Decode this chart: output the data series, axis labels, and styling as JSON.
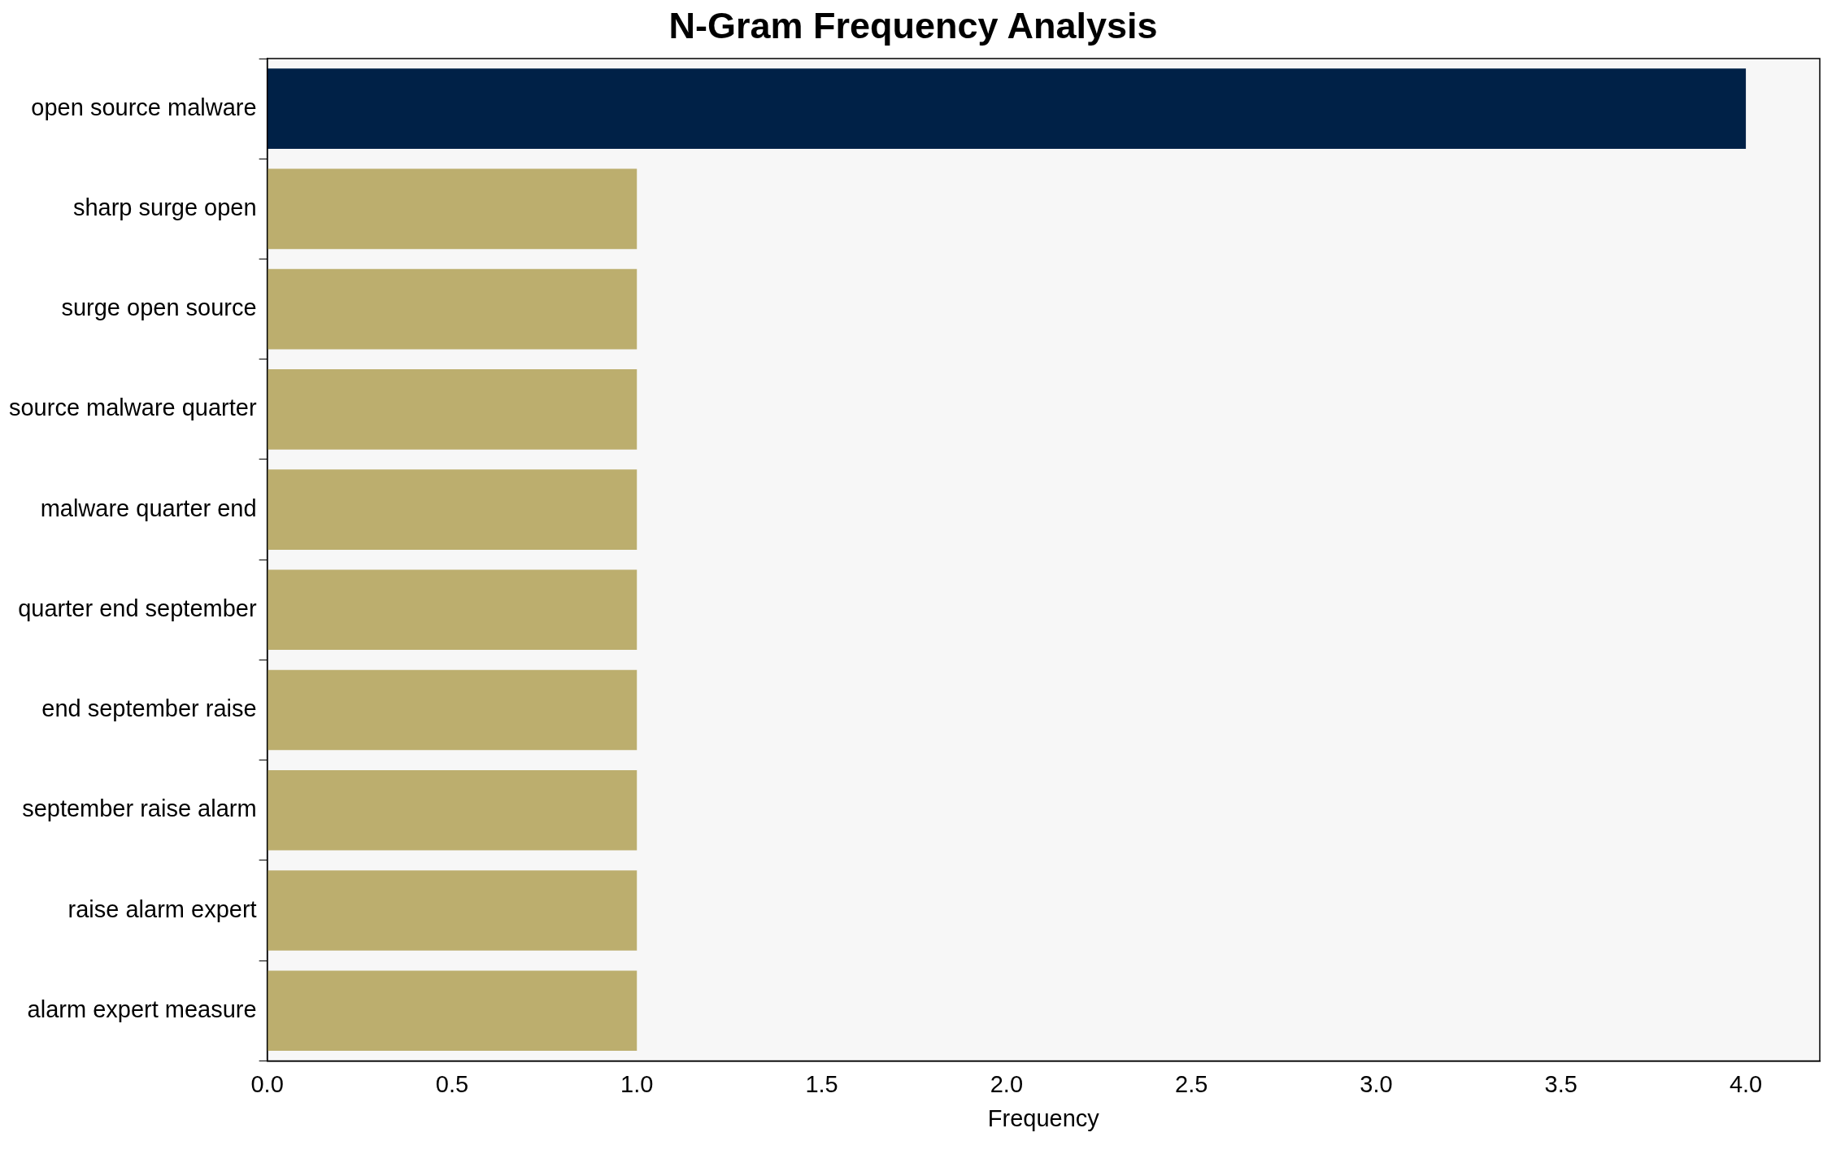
{
  "chart_data": {
    "type": "bar",
    "orientation": "horizontal",
    "title": "N-Gram Frequency Analysis",
    "xlabel": "Frequency",
    "categories": [
      "open source malware",
      "sharp surge open",
      "surge open source",
      "source malware quarter",
      "malware quarter end",
      "quarter end september",
      "end september raise",
      "september raise alarm",
      "raise alarm expert",
      "alarm expert measure"
    ],
    "values": [
      4,
      1,
      1,
      1,
      1,
      1,
      1,
      1,
      1,
      1
    ],
    "colors": [
      "#002147",
      "#bcae6e",
      "#bcae6e",
      "#bcae6e",
      "#bcae6e",
      "#bcae6e",
      "#bcae6e",
      "#bcae6e",
      "#bcae6e",
      "#bcae6e"
    ],
    "xlim": [
      0,
      4.2
    ],
    "xticks": [
      {
        "value": 0,
        "label": "0.0"
      },
      {
        "value": 0.5,
        "label": "0.5"
      },
      {
        "value": 1,
        "label": "1.0"
      },
      {
        "value": 1.5,
        "label": "1.5"
      },
      {
        "value": 2,
        "label": "2.0"
      },
      {
        "value": 2.5,
        "label": "2.5"
      },
      {
        "value": 3,
        "label": "3.0"
      },
      {
        "value": 3.5,
        "label": "3.5"
      },
      {
        "value": 4,
        "label": "4.0"
      }
    ],
    "grid": false,
    "legend": false
  }
}
